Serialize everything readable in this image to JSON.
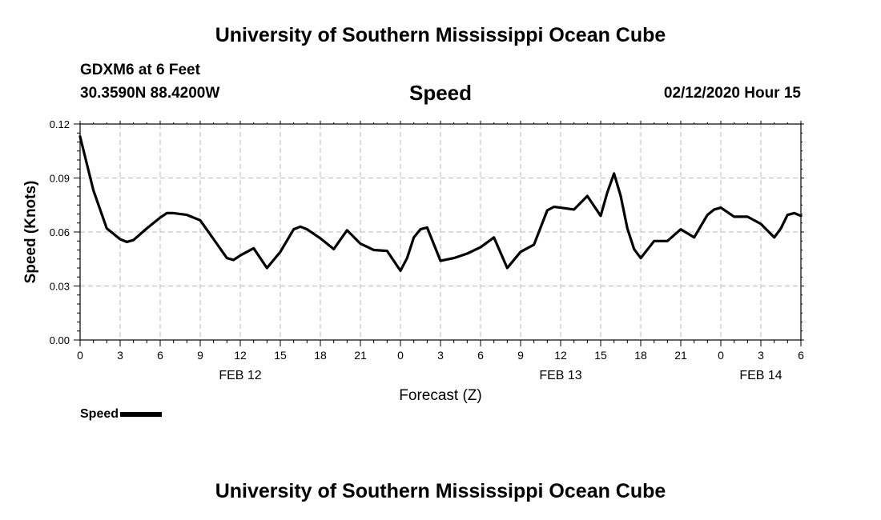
{
  "header": {
    "top_title": "University of Southern Mississippi Ocean Cube",
    "bottom_title": "University of Southern Mississippi Ocean Cube",
    "station": "GDXM6 at 6 Feet",
    "coords": "30.3590N 88.4200W",
    "date": "02/12/2020 Hour 15"
  },
  "legend": {
    "label": "Speed"
  },
  "chart_data": {
    "type": "line",
    "title": "Speed",
    "xlabel": "Forecast (Z)",
    "ylabel": "Speed (Knots)",
    "xlim": [
      0,
      54
    ],
    "ylim": [
      0.0,
      0.12
    ],
    "yticks": [
      "0.00",
      "0.03",
      "0.06",
      "0.09",
      "0.12"
    ],
    "xticks": [
      {
        "h": 0,
        "label": "0"
      },
      {
        "h": 3,
        "label": "3"
      },
      {
        "h": 6,
        "label": "6"
      },
      {
        "h": 9,
        "label": "9"
      },
      {
        "h": 12,
        "label": "12"
      },
      {
        "h": 15,
        "label": "15"
      },
      {
        "h": 18,
        "label": "18"
      },
      {
        "h": 21,
        "label": "21"
      },
      {
        "h": 24,
        "label": "0"
      },
      {
        "h": 27,
        "label": "3"
      },
      {
        "h": 30,
        "label": "6"
      },
      {
        "h": 33,
        "label": "9"
      },
      {
        "h": 36,
        "label": "12"
      },
      {
        "h": 39,
        "label": "15"
      },
      {
        "h": 42,
        "label": "18"
      },
      {
        "h": 45,
        "label": "21"
      },
      {
        "h": 48,
        "label": "0"
      },
      {
        "h": 51,
        "label": "3"
      },
      {
        "h": 54,
        "label": "6"
      }
    ],
    "date_labels": [
      {
        "h": 12,
        "label": "FEB 12"
      },
      {
        "h": 36,
        "label": "FEB 13"
      },
      {
        "h": 51,
        "label": "FEB 14"
      }
    ],
    "series": [
      {
        "name": "Speed",
        "x": [
          0,
          1,
          2,
          3,
          3.5,
          4,
          5,
          6,
          6.5,
          7,
          8,
          9,
          10,
          11,
          11.5,
          12,
          13,
          14,
          15,
          16,
          16.5,
          17,
          18,
          19,
          20,
          21,
          22,
          23,
          24,
          24.5,
          25,
          25.5,
          26,
          27,
          28,
          29,
          30,
          31,
          32,
          33,
          34,
          35,
          35.5,
          36,
          37,
          38,
          39,
          39.5,
          40,
          40.5,
          41,
          41.5,
          42,
          43,
          44,
          45,
          46,
          47,
          47.5,
          48,
          49,
          50,
          51,
          52,
          52.5,
          53,
          53.5,
          54
        ],
        "values": [
          0.113,
          0.083,
          0.062,
          0.056,
          0.0545,
          0.0555,
          0.062,
          0.068,
          0.0705,
          0.0705,
          0.0695,
          0.0665,
          0.056,
          0.0455,
          0.0445,
          0.047,
          0.051,
          0.04,
          0.049,
          0.0615,
          0.063,
          0.0615,
          0.0565,
          0.0505,
          0.061,
          0.0535,
          0.05,
          0.0495,
          0.0385,
          0.0455,
          0.057,
          0.0615,
          0.0625,
          0.044,
          0.0455,
          0.048,
          0.0515,
          0.057,
          0.04,
          0.049,
          0.053,
          0.072,
          0.074,
          0.0735,
          0.0725,
          0.08,
          0.069,
          0.082,
          0.0925,
          0.08,
          0.062,
          0.0505,
          0.0455,
          0.055,
          0.055,
          0.0615,
          0.057,
          0.0695,
          0.0725,
          0.0735,
          0.0685,
          0.0685,
          0.0645,
          0.057,
          0.062,
          0.0695,
          0.0705,
          0.069
        ]
      }
    ]
  }
}
